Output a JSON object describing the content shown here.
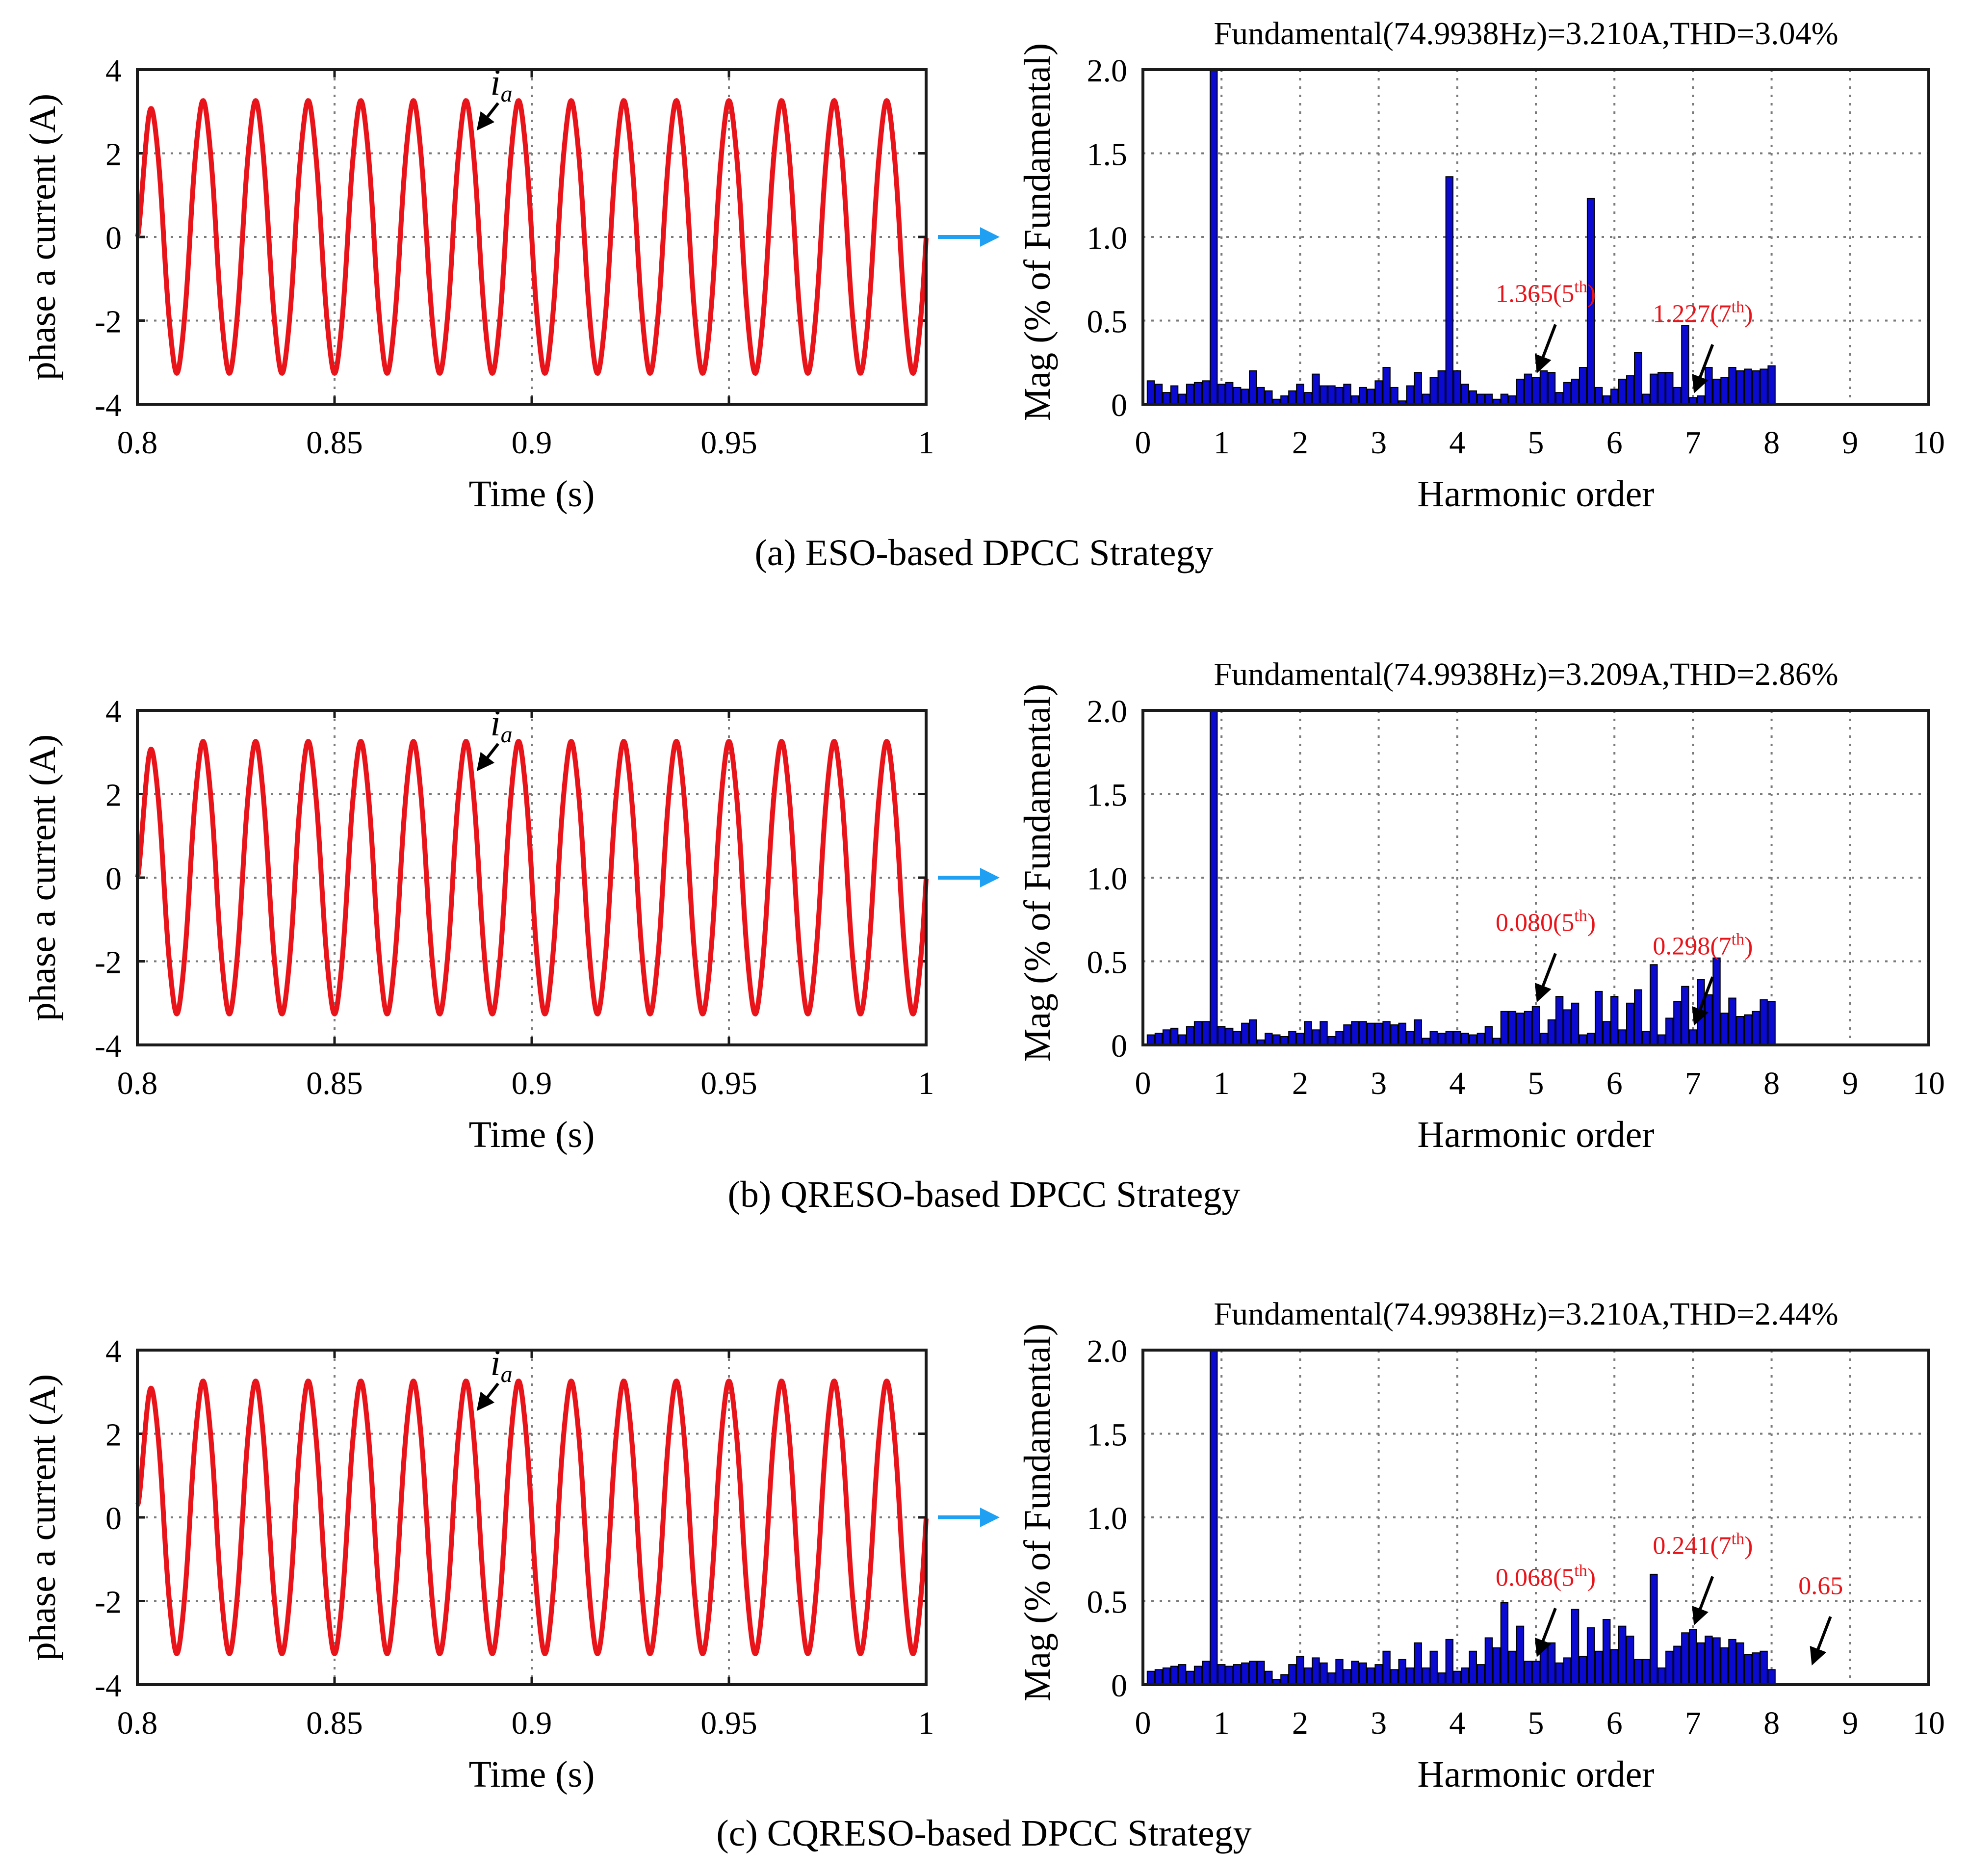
{
  "chart_data": [
    {
      "id": "a",
      "type": "line",
      "caption": "(a) ESO-based DPCC Strategy",
      "xlabel": "Time (s)",
      "ylabel": "phase a current (A)",
      "xlim": [
        0.8,
        1.0
      ],
      "ylim": [
        -4,
        4
      ],
      "xticks": [
        "0.8",
        "0.85",
        "0.9",
        "0.95",
        "1"
      ],
      "yticks": [
        "-4",
        "-2",
        "0",
        "2",
        "4"
      ],
      "series": [
        {
          "name": "ia",
          "amplitude": 3.21,
          "frequency_hz": 74.9938,
          "t_start": 0.8,
          "t_end": 1.0,
          "initial_value": 0
        }
      ],
      "annotation": {
        "label_main": "i",
        "label_sub": "a"
      }
    },
    {
      "id": "a-fft",
      "type": "bar",
      "title": "Fundamental(74.9938Hz)=3.210A,THD=3.04%",
      "xlabel": "Harmonic order",
      "ylabel": "Mag (% of Fundamental)",
      "xlim": [
        0,
        10
      ],
      "ylim": [
        0,
        2.0
      ],
      "xticks": [
        "0",
        "1",
        "2",
        "3",
        "4",
        "5",
        "6",
        "7",
        "8",
        "9",
        "10"
      ],
      "yticks": [
        "0",
        "0.5",
        "1.0",
        "1.5",
        "2.0"
      ],
      "x_start": 0.1,
      "x_step": 0.1,
      "values": [
        0.14,
        0.12,
        0.07,
        0.11,
        0.06,
        0.12,
        0.13,
        0.14,
        2.0,
        0.12,
        0.13,
        0.1,
        0.09,
        0.2,
        0.1,
        0.08,
        0.03,
        0.05,
        0.08,
        0.12,
        0.07,
        0.18,
        0.11,
        0.11,
        0.1,
        0.12,
        0.05,
        0.1,
        0.09,
        0.14,
        0.22,
        0.1,
        0.02,
        0.11,
        0.19,
        0.06,
        0.16,
        0.2,
        1.36,
        0.2,
        0.12,
        0.08,
        0.06,
        0.06,
        0.03,
        0.06,
        0.05,
        0.15,
        0.18,
        0.16,
        0.2,
        0.19,
        0.07,
        0.13,
        0.15,
        0.22,
        1.23,
        0.1,
        0.05,
        0.09,
        0.15,
        0.17,
        0.31,
        0.06,
        0.18,
        0.19,
        0.19,
        0.1,
        0.47,
        0.04,
        0.05,
        0.22,
        0.15,
        0.16,
        0.22,
        0.2,
        0.21,
        0.2,
        0.21,
        0.23
      ],
      "annotations": [
        {
          "harmonic": 5,
          "value_label": "1.365(5",
          "suffix": "th",
          "close": ")"
        },
        {
          "harmonic": 7,
          "value_label": "1.227(7",
          "suffix": "th",
          "close": ")"
        }
      ]
    },
    {
      "id": "b",
      "type": "line",
      "caption": "(b) QRESO-based DPCC Strategy",
      "xlabel": "Time (s)",
      "ylabel": "phase a current (A)",
      "xlim": [
        0.8,
        1.0
      ],
      "ylim": [
        -4,
        4
      ],
      "xticks": [
        "0.8",
        "0.85",
        "0.9",
        "0.95",
        "1"
      ],
      "yticks": [
        "-4",
        "-2",
        "0",
        "2",
        "4"
      ],
      "series": [
        {
          "name": "ia",
          "amplitude": 3.209,
          "frequency_hz": 74.9938,
          "t_start": 0.8,
          "t_end": 1.0,
          "initial_value": 0
        }
      ],
      "annotation": {
        "label_main": "i",
        "label_sub": "a"
      }
    },
    {
      "id": "b-fft",
      "type": "bar",
      "title": "Fundamental(74.9938Hz)=3.209A,THD=2.86%",
      "xlabel": "Harmonic order",
      "ylabel": "Mag (% of Fundamental)",
      "xlim": [
        0,
        10
      ],
      "ylim": [
        0,
        2.0
      ],
      "xticks": [
        "0",
        "1",
        "2",
        "3",
        "4",
        "5",
        "6",
        "7",
        "8",
        "9",
        "10"
      ],
      "yticks": [
        "0",
        "0.5",
        "1.0",
        "1.5",
        "2.0"
      ],
      "x_start": 0.1,
      "x_step": 0.1,
      "values": [
        0.06,
        0.07,
        0.09,
        0.1,
        0.06,
        0.11,
        0.14,
        0.14,
        2.0,
        0.11,
        0.1,
        0.08,
        0.13,
        0.15,
        0.03,
        0.07,
        0.06,
        0.05,
        0.08,
        0.07,
        0.14,
        0.09,
        0.14,
        0.05,
        0.08,
        0.12,
        0.14,
        0.14,
        0.13,
        0.13,
        0.14,
        0.12,
        0.13,
        0.08,
        0.15,
        0.04,
        0.08,
        0.07,
        0.08,
        0.08,
        0.07,
        0.06,
        0.07,
        0.11,
        0.04,
        0.2,
        0.2,
        0.19,
        0.2,
        0.23,
        0.07,
        0.15,
        0.29,
        0.21,
        0.25,
        0.06,
        0.07,
        0.32,
        0.14,
        0.29,
        0.09,
        0.25,
        0.33,
        0.08,
        0.48,
        0.06,
        0.16,
        0.26,
        0.35,
        0.09,
        0.39,
        0.3,
        0.52,
        0.19,
        0.28,
        0.17,
        0.18,
        0.2,
        0.27,
        0.26
      ],
      "annotations": [
        {
          "harmonic": 5,
          "value_label": "0.080(5",
          "suffix": "th",
          "close": ")"
        },
        {
          "harmonic": 7,
          "value_label": "0.298(7",
          "suffix": "th",
          "close": ")"
        }
      ]
    },
    {
      "id": "c",
      "type": "line",
      "caption": "(c) CQRESO-based DPCC Strategy",
      "xlabel": "Time (s)",
      "ylabel": "phase a current (A)",
      "xlim": [
        0.8,
        1.0
      ],
      "ylim": [
        -4,
        4
      ],
      "xticks": [
        "0.8",
        "0.85",
        "0.9",
        "0.95",
        "1"
      ],
      "yticks": [
        "-4",
        "-2",
        "0",
        "2",
        "4"
      ],
      "series": [
        {
          "name": "ia",
          "amplitude": 3.21,
          "frequency_hz": 74.9938,
          "t_start": 0.8,
          "t_end": 1.0,
          "initial_value": 0.3
        }
      ],
      "annotation": {
        "label_main": "i",
        "label_sub": "a"
      }
    },
    {
      "id": "c-fft",
      "type": "bar",
      "title": "Fundamental(74.9938Hz)=3.210A,THD=2.44%",
      "xlabel": "Harmonic order",
      "ylabel": "Mag (% of Fundamental)",
      "xlim": [
        0,
        10
      ],
      "ylim": [
        0,
        2.0
      ],
      "xticks": [
        "0",
        "1",
        "2",
        "3",
        "4",
        "5",
        "6",
        "7",
        "8",
        "9",
        "10"
      ],
      "yticks": [
        "0",
        "0.5",
        "1.0",
        "1.5",
        "2.0"
      ],
      "x_start": 0.1,
      "x_step": 0.1,
      "values": [
        0.08,
        0.09,
        0.1,
        0.11,
        0.12,
        0.08,
        0.11,
        0.14,
        2.0,
        0.12,
        0.11,
        0.12,
        0.13,
        0.14,
        0.14,
        0.08,
        0.03,
        0.06,
        0.12,
        0.17,
        0.1,
        0.16,
        0.13,
        0.07,
        0.15,
        0.09,
        0.14,
        0.13,
        0.1,
        0.12,
        0.2,
        0.09,
        0.15,
        0.1,
        0.25,
        0.1,
        0.2,
        0.07,
        0.27,
        0.08,
        0.1,
        0.2,
        0.12,
        0.28,
        0.22,
        0.49,
        0.2,
        0.35,
        0.14,
        0.14,
        0.22,
        0.25,
        0.13,
        0.16,
        0.45,
        0.17,
        0.34,
        0.2,
        0.39,
        0.21,
        0.35,
        0.29,
        0.15,
        0.15,
        0.66,
        0.1,
        0.2,
        0.23,
        0.31,
        0.33,
        0.25,
        0.29,
        0.28,
        0.22,
        0.27,
        0.25,
        0.18,
        0.19,
        0.2,
        0.09
      ],
      "annotations": [
        {
          "harmonic": 5,
          "value_label": "0.068(5",
          "suffix": "th",
          "close": ")"
        },
        {
          "harmonic": 7,
          "value_label": "0.241(7",
          "suffix": "th",
          "close": ")"
        },
        {
          "harmonic": 8.5,
          "value_label": "0.65",
          "suffix": "",
          "close": ""
        }
      ]
    }
  ]
}
